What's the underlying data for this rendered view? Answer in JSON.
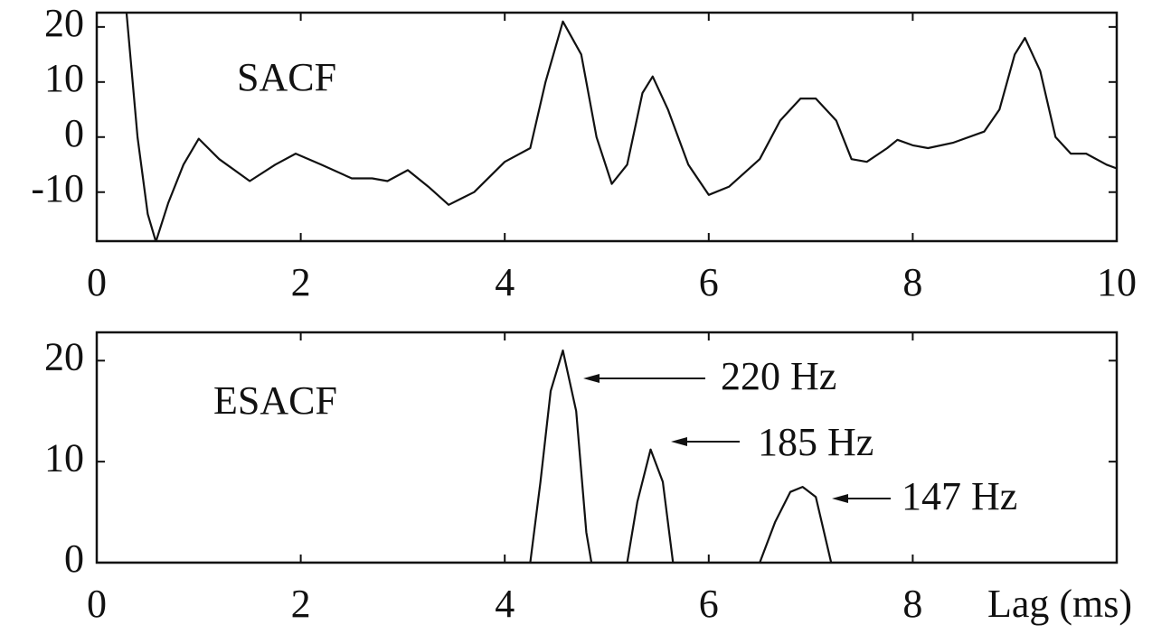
{
  "chart_data": [
    {
      "type": "line",
      "label": "SACF",
      "color": "#111111",
      "x": [
        0.29,
        0.4,
        0.5,
        0.58,
        0.7,
        0.85,
        1.0,
        1.2,
        1.5,
        1.75,
        1.95,
        2.2,
        2.5,
        2.7,
        2.85,
        3.05,
        3.25,
        3.45,
        3.7,
        4.0,
        4.25,
        4.4,
        4.57,
        4.75,
        4.9,
        5.05,
        5.2,
        5.35,
        5.45,
        5.6,
        5.8,
        6.0,
        6.2,
        6.5,
        6.7,
        6.9,
        7.05,
        7.25,
        7.4,
        7.55,
        7.75,
        7.85,
        8.0,
        8.15,
        8.4,
        8.7,
        8.85,
        9.0,
        9.1,
        9.25,
        9.4,
        9.55,
        9.7,
        9.9,
        10.0
      ],
      "values": [
        23,
        0,
        -14,
        -19,
        -12,
        -5,
        -0.3,
        -4,
        -8,
        -5,
        -3,
        -5,
        -7.5,
        -7.5,
        -8,
        -6,
        -9,
        -12.3,
        -10,
        -4.5,
        -2,
        10,
        21,
        15,
        0,
        -8.5,
        -5,
        8,
        11,
        5,
        -5,
        -10.5,
        -9,
        -4,
        3,
        7,
        7,
        3,
        -4,
        -4.5,
        -2,
        -0.5,
        -1.5,
        -2,
        -1,
        1,
        5,
        15,
        18,
        12,
        0,
        -3,
        -3,
        -5,
        -5.7
      ],
      "xlim": [
        0,
        10
      ],
      "ylim": [
        -18.9,
        22.6
      ],
      "xticks": [
        0,
        2,
        4,
        6,
        8,
        10
      ],
      "yticks": [
        -10,
        0,
        10,
        20
      ]
    },
    {
      "type": "line",
      "label": "ESACF",
      "color": "#111111",
      "xlabel": "Lag (ms)",
      "x": [
        0,
        4.25,
        4.35,
        4.45,
        4.57,
        4.7,
        4.8,
        4.85,
        5.2,
        5.3,
        5.43,
        5.55,
        5.65,
        6.5,
        6.65,
        6.8,
        6.92,
        7.05,
        7.2,
        10
      ],
      "values": [
        0,
        0,
        8,
        17,
        21,
        15,
        3,
        0,
        0,
        6,
        11.2,
        8,
        0,
        0,
        4,
        7,
        7.5,
        6.5,
        0,
        0
      ],
      "annotations": [
        "220 Hz",
        "185 Hz",
        "147 Hz"
      ],
      "xlim": [
        0,
        10
      ],
      "ylim": [
        0,
        22.8
      ],
      "xticks": [
        0,
        2,
        4,
        6,
        8
      ],
      "yticks": [
        0,
        10,
        20
      ]
    }
  ]
}
